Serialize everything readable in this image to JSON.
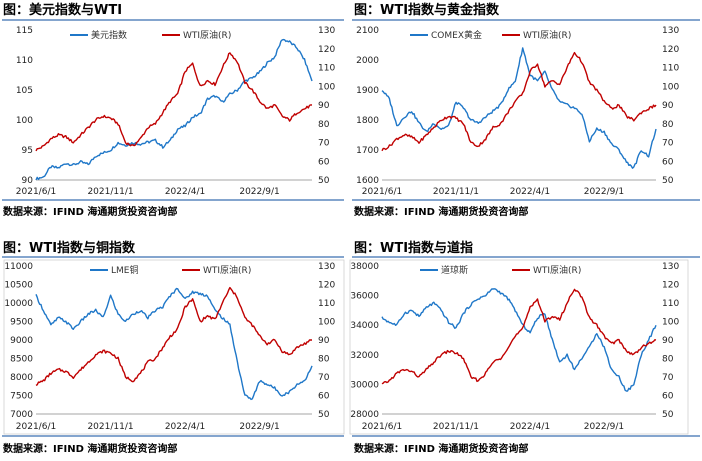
{
  "panels": [
    {
      "title": "图：美元指数与WTI",
      "source": "数据来源：IFIND   海通期货投资咨询部",
      "legend_left": "美元指数",
      "legend_right": "WTI原油(R)"
    },
    {
      "title": "图：WTI指数与黄金指数",
      "source": "数据来源：IFIND   海通期货投资咨询部",
      "legend_left": "COMEX黄金",
      "legend_right": "WTI原油(R)"
    },
    {
      "title": "图：WTI指数与铜指数",
      "source": "数据来源：IFIND   海通期货投资咨询部",
      "legend_left": "LME铜",
      "legend_right": "WTI原油(R)"
    },
    {
      "title": "图：WTI指数与道指",
      "source": "数据来源：IFIND   海通期货投资咨询部",
      "legend_left": "道琼斯",
      "legend_right": "WTI原油(R)"
    }
  ],
  "colors": {
    "left_series": "#1f77c8",
    "right_series": "#c00000",
    "rule": "#3a6fb0"
  },
  "chart_data": [
    {
      "type": "line",
      "x_ticks": [
        "2021/6/1",
        "2021/11/1",
        "2022/4/1",
        "2022/9/1"
      ],
      "y_left_ticks": [
        "90",
        "95",
        "100",
        "105",
        "110",
        "115"
      ],
      "y_right_ticks": [
        "50",
        "60",
        "70",
        "80",
        "90",
        "100",
        "110",
        "120",
        "130"
      ],
      "ylim_left": [
        90,
        115
      ],
      "ylim_right": [
        50,
        130
      ],
      "series": [
        {
          "name": "美元指数",
          "axis": "left",
          "values": [
            90.2,
            90.5,
            92.2,
            92.0,
            92.8,
            92.5,
            93.0,
            92.6,
            94.0,
            94.5,
            95.0,
            96.2,
            95.8,
            96.2,
            96.0,
            96.3,
            96.6,
            95.5,
            96.6,
            98.5,
            99.0,
            100.5,
            101.0,
            103.5,
            104.0,
            103.0,
            104.3,
            105.0,
            106.5,
            107.0,
            108.0,
            109.5,
            110.5,
            113.5,
            113.0,
            112.0,
            110.0,
            106.5
          ]
        },
        {
          "name": "WTI原油(R)",
          "axis": "right",
          "values": [
            66,
            68,
            72,
            74,
            73,
            70,
            74,
            78,
            82,
            84,
            83,
            80,
            70,
            68,
            72,
            78,
            80,
            86,
            92,
            96,
            108,
            112,
            100,
            103,
            101,
            110,
            118,
            113,
            102,
            98,
            92,
            88,
            90,
            84,
            82,
            86,
            88,
            90
          ]
        }
      ]
    },
    {
      "type": "line",
      "x_ticks": [
        "2021/6/1",
        "2021/11/1",
        "2022/4/1",
        "2022/9/1"
      ],
      "y_left_ticks": [
        "1600",
        "1700",
        "1800",
        "1900",
        "2000",
        "2100"
      ],
      "y_right_ticks": [
        "50",
        "60",
        "70",
        "80",
        "90",
        "100",
        "110",
        "120",
        "130"
      ],
      "ylim_left": [
        1600,
        2100
      ],
      "ylim_right": [
        50,
        130
      ],
      "series": [
        {
          "name": "COMEX黄金",
          "axis": "left",
          "values": [
            1900,
            1870,
            1780,
            1810,
            1830,
            1790,
            1760,
            1790,
            1770,
            1780,
            1860,
            1840,
            1800,
            1790,
            1810,
            1830,
            1850,
            1900,
            1930,
            2040,
            1950,
            1930,
            1960,
            1900,
            1860,
            1850,
            1840,
            1820,
            1730,
            1770,
            1760,
            1720,
            1700,
            1660,
            1640,
            1700,
            1680,
            1770
          ]
        },
        {
          "name": "WTI原油(R)",
          "axis": "right",
          "values": [
            66,
            68,
            72,
            74,
            73,
            70,
            74,
            78,
            82,
            84,
            83,
            80,
            70,
            68,
            72,
            78,
            80,
            86,
            92,
            96,
            108,
            112,
            100,
            103,
            101,
            110,
            118,
            113,
            102,
            98,
            92,
            88,
            90,
            84,
            82,
            86,
            88,
            90
          ]
        }
      ]
    },
    {
      "type": "line",
      "x_ticks": [
        "2021/6/1",
        "2021/11/1",
        "2022/4/1",
        "2022/9/1"
      ],
      "y_left_ticks": [
        "7000",
        "7500",
        "8000",
        "8500",
        "9000",
        "9500",
        "10000",
        "10500",
        "11000"
      ],
      "y_right_ticks": [
        "50",
        "60",
        "70",
        "80",
        "90",
        "100",
        "110",
        "120",
        "130"
      ],
      "ylim_left": [
        7000,
        11000
      ],
      "ylim_right": [
        50,
        130
      ],
      "series": [
        {
          "name": "LME铜",
          "axis": "left",
          "values": [
            10200,
            9800,
            9400,
            9600,
            9500,
            9300,
            9500,
            9700,
            9800,
            9600,
            10200,
            9700,
            9500,
            9700,
            9800,
            9600,
            9800,
            9900,
            10200,
            10400,
            10100,
            10300,
            10250,
            10200,
            9800,
            9600,
            9400,
            8400,
            7500,
            7400,
            7900,
            7800,
            7700,
            7500,
            7600,
            7800,
            7900,
            8300
          ]
        },
        {
          "name": "WTI原油(R)",
          "axis": "right",
          "values": [
            66,
            68,
            72,
            74,
            73,
            70,
            74,
            78,
            82,
            84,
            83,
            80,
            70,
            68,
            72,
            78,
            80,
            86,
            92,
            96,
            108,
            112,
            100,
            103,
            101,
            110,
            118,
            113,
            102,
            98,
            92,
            88,
            90,
            84,
            82,
            86,
            88,
            90
          ]
        }
      ]
    },
    {
      "type": "line",
      "x_ticks": [
        "2021/6/1",
        "2021/11/1",
        "2022/4/1",
        "2022/9/1"
      ],
      "y_left_ticks": [
        "28000",
        "30000",
        "32000",
        "34000",
        "36000",
        "38000"
      ],
      "y_right_ticks": [
        "50",
        "60",
        "70",
        "80",
        "90",
        "100",
        "110",
        "120",
        "130"
      ],
      "ylim_left": [
        28000,
        38000
      ],
      "ylim_right": [
        50,
        130
      ],
      "series": [
        {
          "name": "道琼斯",
          "axis": "left",
          "values": [
            34500,
            34200,
            34000,
            34800,
            35000,
            34600,
            35200,
            35500,
            35000,
            34200,
            33800,
            34800,
            35400,
            35800,
            36000,
            36500,
            36200,
            35800,
            35000,
            34000,
            33500,
            34500,
            34800,
            33000,
            31500,
            32000,
            31000,
            31800,
            32500,
            33500,
            32500,
            31000,
            30500,
            29500,
            30000,
            32000,
            33000,
            34000
          ]
        },
        {
          "name": "WTI原油(R)",
          "axis": "right",
          "values": [
            66,
            68,
            72,
            74,
            73,
            70,
            74,
            78,
            82,
            84,
            83,
            80,
            70,
            68,
            72,
            78,
            80,
            86,
            92,
            96,
            108,
            112,
            100,
            103,
            101,
            110,
            118,
            113,
            102,
            98,
            92,
            88,
            90,
            84,
            82,
            86,
            88,
            90
          ]
        }
      ]
    }
  ]
}
